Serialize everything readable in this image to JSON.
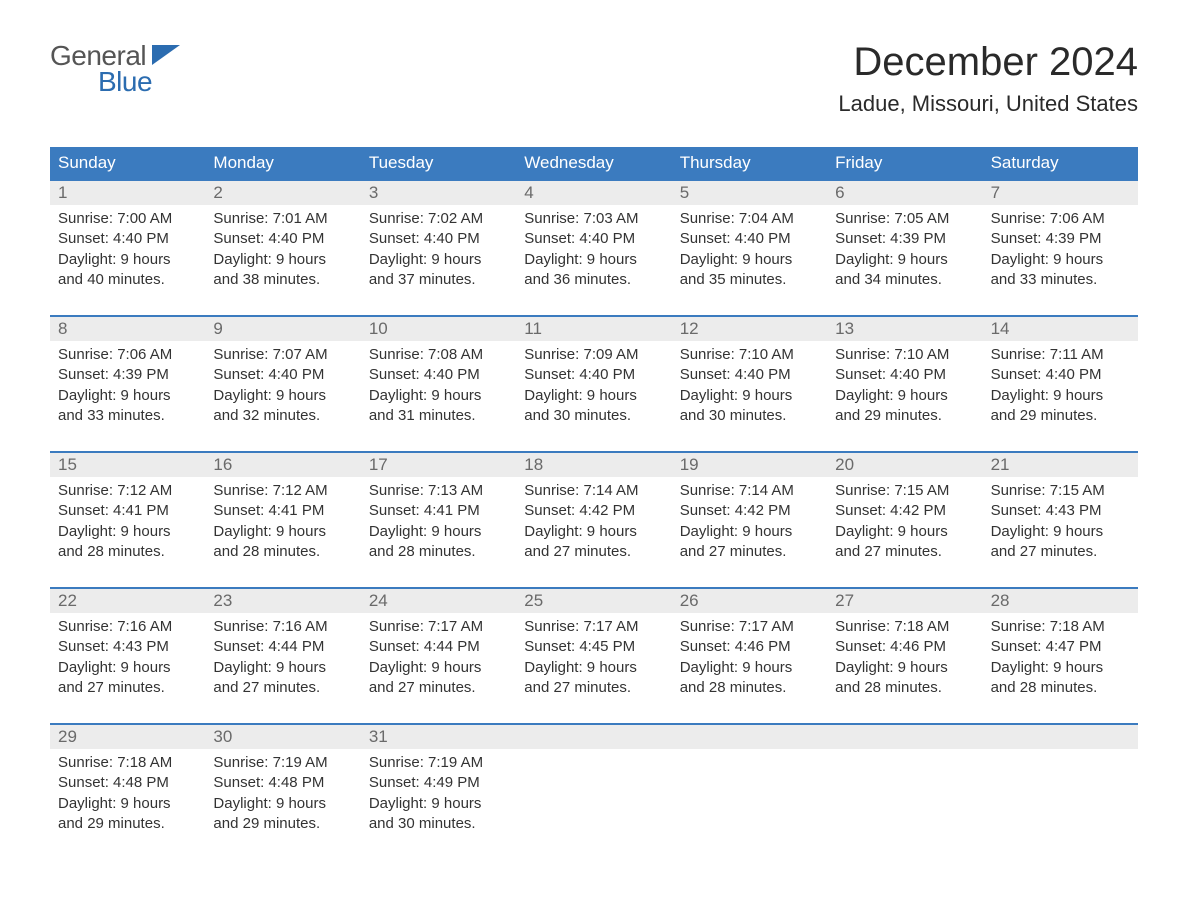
{
  "logo": {
    "word1": "General",
    "word2": "Blue",
    "word1_color": "#555555",
    "word2_color": "#2b6cb0",
    "flag_color": "#2b6cb0"
  },
  "title": "December 2024",
  "location": "Ladue, Missouri, United States",
  "colors": {
    "header_bg": "#3b7bbf",
    "header_text": "#ffffff",
    "week_border": "#3b7bbf",
    "num_strip_bg": "#ececec",
    "num_text": "#6a6a6a",
    "body_text": "#333333",
    "page_bg": "#ffffff"
  },
  "typography": {
    "title_fontsize": 40,
    "location_fontsize": 22,
    "weekday_fontsize": 17,
    "daynum_fontsize": 17,
    "body_fontsize": 15
  },
  "weekdays": [
    "Sunday",
    "Monday",
    "Tuesday",
    "Wednesday",
    "Thursday",
    "Friday",
    "Saturday"
  ],
  "weeks": [
    [
      {
        "num": "1",
        "sunrise": "Sunrise: 7:00 AM",
        "sunset": "Sunset: 4:40 PM",
        "dl1": "Daylight: 9 hours",
        "dl2": "and 40 minutes."
      },
      {
        "num": "2",
        "sunrise": "Sunrise: 7:01 AM",
        "sunset": "Sunset: 4:40 PM",
        "dl1": "Daylight: 9 hours",
        "dl2": "and 38 minutes."
      },
      {
        "num": "3",
        "sunrise": "Sunrise: 7:02 AM",
        "sunset": "Sunset: 4:40 PM",
        "dl1": "Daylight: 9 hours",
        "dl2": "and 37 minutes."
      },
      {
        "num": "4",
        "sunrise": "Sunrise: 7:03 AM",
        "sunset": "Sunset: 4:40 PM",
        "dl1": "Daylight: 9 hours",
        "dl2": "and 36 minutes."
      },
      {
        "num": "5",
        "sunrise": "Sunrise: 7:04 AM",
        "sunset": "Sunset: 4:40 PM",
        "dl1": "Daylight: 9 hours",
        "dl2": "and 35 minutes."
      },
      {
        "num": "6",
        "sunrise": "Sunrise: 7:05 AM",
        "sunset": "Sunset: 4:39 PM",
        "dl1": "Daylight: 9 hours",
        "dl2": "and 34 minutes."
      },
      {
        "num": "7",
        "sunrise": "Sunrise: 7:06 AM",
        "sunset": "Sunset: 4:39 PM",
        "dl1": "Daylight: 9 hours",
        "dl2": "and 33 minutes."
      }
    ],
    [
      {
        "num": "8",
        "sunrise": "Sunrise: 7:06 AM",
        "sunset": "Sunset: 4:39 PM",
        "dl1": "Daylight: 9 hours",
        "dl2": "and 33 minutes."
      },
      {
        "num": "9",
        "sunrise": "Sunrise: 7:07 AM",
        "sunset": "Sunset: 4:40 PM",
        "dl1": "Daylight: 9 hours",
        "dl2": "and 32 minutes."
      },
      {
        "num": "10",
        "sunrise": "Sunrise: 7:08 AM",
        "sunset": "Sunset: 4:40 PM",
        "dl1": "Daylight: 9 hours",
        "dl2": "and 31 minutes."
      },
      {
        "num": "11",
        "sunrise": "Sunrise: 7:09 AM",
        "sunset": "Sunset: 4:40 PM",
        "dl1": "Daylight: 9 hours",
        "dl2": "and 30 minutes."
      },
      {
        "num": "12",
        "sunrise": "Sunrise: 7:10 AM",
        "sunset": "Sunset: 4:40 PM",
        "dl1": "Daylight: 9 hours",
        "dl2": "and 30 minutes."
      },
      {
        "num": "13",
        "sunrise": "Sunrise: 7:10 AM",
        "sunset": "Sunset: 4:40 PM",
        "dl1": "Daylight: 9 hours",
        "dl2": "and 29 minutes."
      },
      {
        "num": "14",
        "sunrise": "Sunrise: 7:11 AM",
        "sunset": "Sunset: 4:40 PM",
        "dl1": "Daylight: 9 hours",
        "dl2": "and 29 minutes."
      }
    ],
    [
      {
        "num": "15",
        "sunrise": "Sunrise: 7:12 AM",
        "sunset": "Sunset: 4:41 PM",
        "dl1": "Daylight: 9 hours",
        "dl2": "and 28 minutes."
      },
      {
        "num": "16",
        "sunrise": "Sunrise: 7:12 AM",
        "sunset": "Sunset: 4:41 PM",
        "dl1": "Daylight: 9 hours",
        "dl2": "and 28 minutes."
      },
      {
        "num": "17",
        "sunrise": "Sunrise: 7:13 AM",
        "sunset": "Sunset: 4:41 PM",
        "dl1": "Daylight: 9 hours",
        "dl2": "and 28 minutes."
      },
      {
        "num": "18",
        "sunrise": "Sunrise: 7:14 AM",
        "sunset": "Sunset: 4:42 PM",
        "dl1": "Daylight: 9 hours",
        "dl2": "and 27 minutes."
      },
      {
        "num": "19",
        "sunrise": "Sunrise: 7:14 AM",
        "sunset": "Sunset: 4:42 PM",
        "dl1": "Daylight: 9 hours",
        "dl2": "and 27 minutes."
      },
      {
        "num": "20",
        "sunrise": "Sunrise: 7:15 AM",
        "sunset": "Sunset: 4:42 PM",
        "dl1": "Daylight: 9 hours",
        "dl2": "and 27 minutes."
      },
      {
        "num": "21",
        "sunrise": "Sunrise: 7:15 AM",
        "sunset": "Sunset: 4:43 PM",
        "dl1": "Daylight: 9 hours",
        "dl2": "and 27 minutes."
      }
    ],
    [
      {
        "num": "22",
        "sunrise": "Sunrise: 7:16 AM",
        "sunset": "Sunset: 4:43 PM",
        "dl1": "Daylight: 9 hours",
        "dl2": "and 27 minutes."
      },
      {
        "num": "23",
        "sunrise": "Sunrise: 7:16 AM",
        "sunset": "Sunset: 4:44 PM",
        "dl1": "Daylight: 9 hours",
        "dl2": "and 27 minutes."
      },
      {
        "num": "24",
        "sunrise": "Sunrise: 7:17 AM",
        "sunset": "Sunset: 4:44 PM",
        "dl1": "Daylight: 9 hours",
        "dl2": "and 27 minutes."
      },
      {
        "num": "25",
        "sunrise": "Sunrise: 7:17 AM",
        "sunset": "Sunset: 4:45 PM",
        "dl1": "Daylight: 9 hours",
        "dl2": "and 27 minutes."
      },
      {
        "num": "26",
        "sunrise": "Sunrise: 7:17 AM",
        "sunset": "Sunset: 4:46 PM",
        "dl1": "Daylight: 9 hours",
        "dl2": "and 28 minutes."
      },
      {
        "num": "27",
        "sunrise": "Sunrise: 7:18 AM",
        "sunset": "Sunset: 4:46 PM",
        "dl1": "Daylight: 9 hours",
        "dl2": "and 28 minutes."
      },
      {
        "num": "28",
        "sunrise": "Sunrise: 7:18 AM",
        "sunset": "Sunset: 4:47 PM",
        "dl1": "Daylight: 9 hours",
        "dl2": "and 28 minutes."
      }
    ],
    [
      {
        "num": "29",
        "sunrise": "Sunrise: 7:18 AM",
        "sunset": "Sunset: 4:48 PM",
        "dl1": "Daylight: 9 hours",
        "dl2": "and 29 minutes."
      },
      {
        "num": "30",
        "sunrise": "Sunrise: 7:19 AM",
        "sunset": "Sunset: 4:48 PM",
        "dl1": "Daylight: 9 hours",
        "dl2": "and 29 minutes."
      },
      {
        "num": "31",
        "sunrise": "Sunrise: 7:19 AM",
        "sunset": "Sunset: 4:49 PM",
        "dl1": "Daylight: 9 hours",
        "dl2": "and 30 minutes."
      },
      {
        "num": "",
        "sunrise": "",
        "sunset": "",
        "dl1": "",
        "dl2": ""
      },
      {
        "num": "",
        "sunrise": "",
        "sunset": "",
        "dl1": "",
        "dl2": ""
      },
      {
        "num": "",
        "sunrise": "",
        "sunset": "",
        "dl1": "",
        "dl2": ""
      },
      {
        "num": "",
        "sunrise": "",
        "sunset": "",
        "dl1": "",
        "dl2": ""
      }
    ]
  ]
}
